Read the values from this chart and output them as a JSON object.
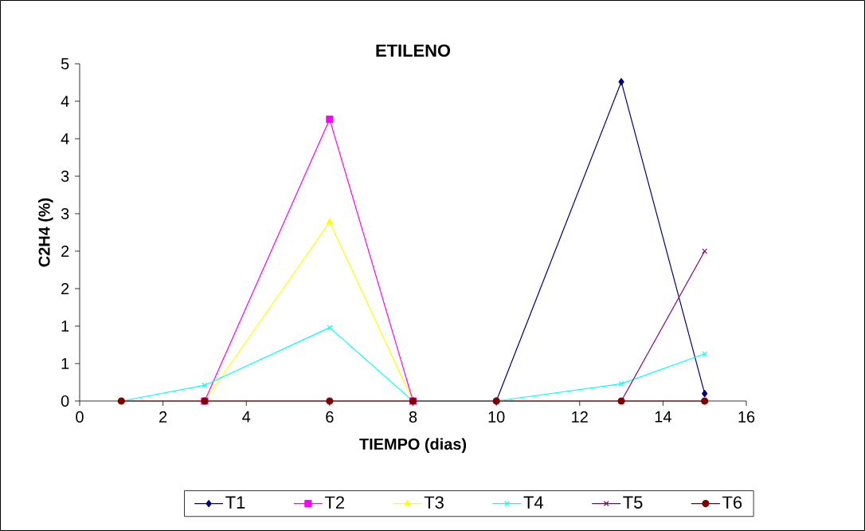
{
  "chart_data": {
    "type": "line",
    "title": "ETILENO",
    "xlabel": "TIEMPO (dias)",
    "ylabel": "C2H4 (%)",
    "x": [
      1,
      3,
      6,
      8,
      10,
      13,
      15
    ],
    "xlim": [
      0,
      16
    ],
    "xticks": [
      0,
      2,
      4,
      6,
      8,
      10,
      12,
      14,
      16
    ],
    "ylim": [
      0,
      4.5
    ],
    "yticks": [
      {
        "value": 0,
        "label": "0"
      },
      {
        "value": 0.5,
        "label": "1"
      },
      {
        "value": 1,
        "label": "1"
      },
      {
        "value": 1.5,
        "label": "2"
      },
      {
        "value": 2,
        "label": "2"
      },
      {
        "value": 2.5,
        "label": "3"
      },
      {
        "value": 3,
        "label": "3"
      },
      {
        "value": 3.5,
        "label": "4"
      },
      {
        "value": 4,
        "label": "4"
      },
      {
        "value": 4.5,
        "label": "5"
      }
    ],
    "legend": "bottom",
    "line_style": "solid",
    "series": [
      {
        "name": "T1",
        "color": "#000080",
        "marker": "diamond",
        "values": [
          null,
          null,
          null,
          null,
          0,
          4.26,
          0.1
        ]
      },
      {
        "name": "T2",
        "color": "#ff00ff",
        "marker": "square",
        "values": [
          null,
          0,
          3.76,
          0,
          null,
          null,
          null
        ]
      },
      {
        "name": "T3",
        "color": "#ffff00",
        "marker": "triangle",
        "values": [
          null,
          0,
          2.39,
          0,
          null,
          null,
          null
        ]
      },
      {
        "name": "T4",
        "color": "#00ffff",
        "marker": "cross",
        "values": [
          0,
          0.21,
          0.98,
          0,
          0,
          0.23,
          0.63
        ]
      },
      {
        "name": "T5",
        "color": "#800080",
        "marker": "cross",
        "values": [
          null,
          null,
          null,
          null,
          null,
          0,
          2.0
        ]
      },
      {
        "name": "T6",
        "color": "#800000",
        "marker": "circle",
        "values": [
          0,
          0,
          0,
          0,
          0,
          0,
          0
        ]
      }
    ]
  }
}
